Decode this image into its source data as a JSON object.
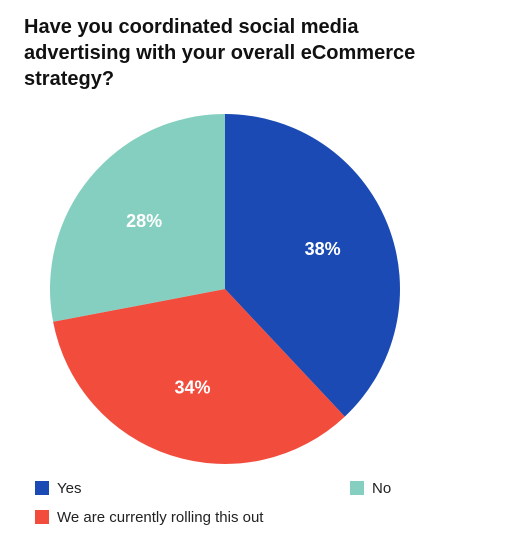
{
  "chart_data": {
    "type": "pie",
    "title": "Have you coordinated social media advertising with your overall eCommerce strategy?",
    "categories": [
      "Yes",
      "We are currently rolling this out",
      "No"
    ],
    "values": [
      38,
      34,
      28
    ],
    "value_labels": [
      "38%",
      "34%",
      "28%"
    ],
    "colors": [
      "#1b4ab4",
      "#f24c3d",
      "#84cfbf"
    ]
  }
}
